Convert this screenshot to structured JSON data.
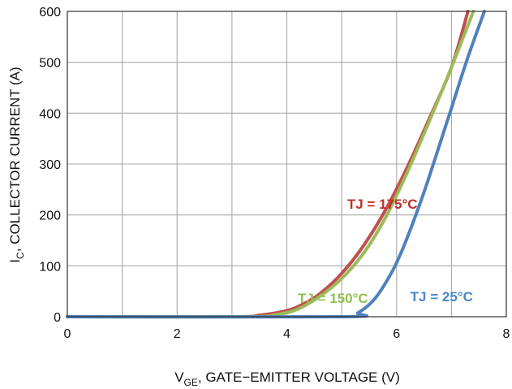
{
  "chart_data": {
    "type": "line",
    "title": "",
    "xlabel": {
      "main": "V",
      "sub": "GE",
      "rest": ", GATE−EMITTER VOLTAGE (V)"
    },
    "ylabel": {
      "main": "I",
      "sub": "C",
      "rest": ", COLLECTOR CURRENT (A)"
    },
    "xlim": [
      0,
      8
    ],
    "ylim": [
      0,
      600
    ],
    "xticks": [
      0,
      2,
      4,
      6,
      8
    ],
    "xtick_labels": [
      "0",
      "2",
      "4",
      "6",
      "8"
    ],
    "yticks": [
      0,
      100,
      200,
      300,
      400,
      500,
      600
    ],
    "ytick_labels": [
      "0",
      "100",
      "200",
      "300",
      "400",
      "500",
      "600"
    ],
    "grid": true,
    "legend": "none",
    "series": [
      {
        "name": "TJ = 175°C",
        "color": "#c0504d",
        "x": [
          0,
          3.0,
          3.5,
          4.0,
          4.3,
          4.6,
          5.0,
          5.4,
          5.8,
          6.2,
          6.6,
          7.0,
          7.3
        ],
        "y": [
          0,
          0,
          3,
          12,
          25,
          45,
          85,
          140,
          210,
          295,
          390,
          490,
          600
        ]
      },
      {
        "name": "TJ = 150°C",
        "color": "#9bbb59",
        "x": [
          0,
          3.2,
          3.8,
          4.2,
          4.6,
          5.0,
          5.4,
          5.8,
          6.2,
          6.6,
          7.0,
          7.4
        ],
        "y": [
          0,
          0,
          4,
          15,
          40,
          75,
          125,
          195,
          285,
          385,
          490,
          600
        ]
      },
      {
        "name": "TJ = 25°C",
        "color": "#4f81bd",
        "x": [
          0,
          5.0,
          5.3,
          5.6,
          5.9,
          6.1,
          6.3,
          6.5,
          6.7,
          7.0,
          7.3,
          7.6
        ],
        "y": [
          0,
          0,
          8,
          35,
          85,
          130,
          185,
          245,
          310,
          410,
          510,
          600
        ]
      }
    ],
    "annotations": [
      {
        "text": "TJ = 175°C",
        "color": "#c0302a",
        "x": 5.1,
        "y": 212
      },
      {
        "text": "TJ = 150°C",
        "color": "#92c050",
        "x": 4.2,
        "y": 27
      },
      {
        "text": "TJ = 25°C",
        "color": "#4a86c8",
        "x": 6.25,
        "y": 30
      }
    ]
  }
}
